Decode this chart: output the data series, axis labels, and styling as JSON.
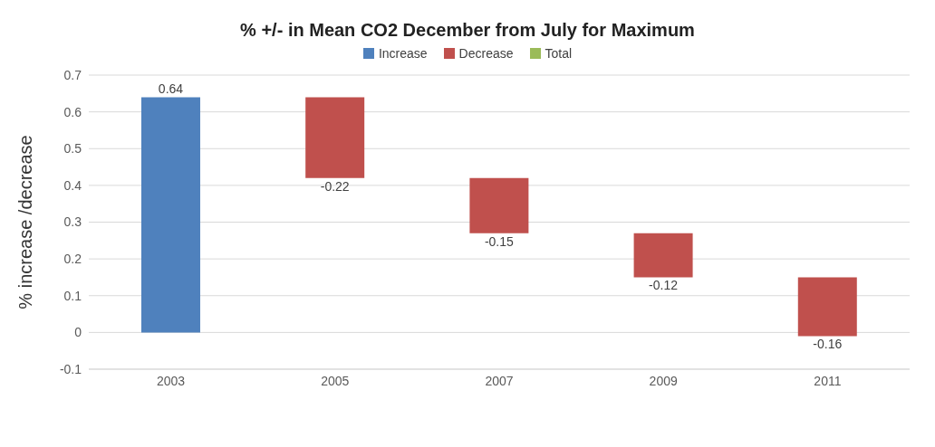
{
  "chart_data": {
    "type": "bar",
    "title": "% +/- in Mean CO2 December from July for Maximum",
    "ylabel": "% increase /decrease",
    "categories": [
      "2003",
      "2005",
      "2007",
      "2009",
      "2011"
    ],
    "series": [
      {
        "name": "Increase",
        "color": "#4f81bd",
        "values": [
          0.64,
          null,
          null,
          null,
          null
        ],
        "base": [
          0,
          null,
          null,
          null,
          null
        ]
      },
      {
        "name": "Decrease",
        "color": "#c0504d",
        "values": [
          null,
          -0.22,
          -0.15,
          -0.12,
          -0.16
        ],
        "base": [
          null,
          0.64,
          0.42,
          0.27,
          0.15
        ]
      },
      {
        "name": "Total",
        "color": "#9bbb59",
        "values": [
          null,
          null,
          null,
          null,
          null
        ]
      }
    ],
    "ylim": [
      -0.1,
      0.7
    ],
    "yticks": [
      -0.1,
      0,
      0.1,
      0.2,
      0.3,
      0.4,
      0.5,
      0.6,
      0.7
    ],
    "grid": "y",
    "legend": "top",
    "data_labels": true
  }
}
